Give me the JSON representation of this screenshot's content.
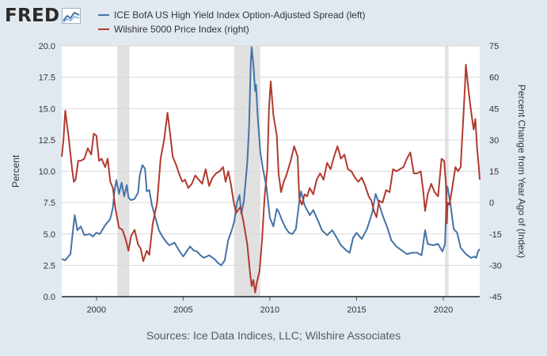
{
  "brand": {
    "wordmark": "FRED"
  },
  "sources": "Sources: Ice Data Indices, LLC; Wilshire Associates",
  "chart_data": {
    "type": "line",
    "x_range": [
      1998.0,
      2022.1
    ],
    "x_ticks": [
      {
        "value": 2000,
        "label": "2000"
      },
      {
        "value": 2005,
        "label": "2005"
      },
      {
        "value": 2010,
        "label": "2010"
      },
      {
        "value": 2015,
        "label": "2015"
      },
      {
        "value": 2020,
        "label": "2020"
      }
    ],
    "y_left": {
      "label": "Percent",
      "range": [
        0,
        20
      ],
      "ticks": [
        "0.0",
        "2.5",
        "5.0",
        "7.5",
        "10.0",
        "12.5",
        "15.0",
        "17.5",
        "20.0"
      ]
    },
    "y_right": {
      "label": "Percent Change from Year Ago of (Index)",
      "range": [
        -45,
        75
      ],
      "ticks": [
        "-45",
        "-30",
        "-15",
        "0",
        "15",
        "30",
        "45",
        "60",
        "75"
      ]
    },
    "recessions": [
      [
        2001.2,
        2001.9
      ],
      [
        2007.95,
        2009.45
      ],
      [
        2020.1,
        2020.3
      ]
    ],
    "series": [
      {
        "name": "ICE BofA US High Yield Index Option-Adjusted Spread (left)",
        "axis": "left",
        "color": "#4572a7",
        "points": [
          [
            1998.0,
            3.0
          ],
          [
            1998.2,
            2.9
          ],
          [
            1998.5,
            3.4
          ],
          [
            1998.65,
            5.3
          ],
          [
            1998.75,
            6.5
          ],
          [
            1998.9,
            5.3
          ],
          [
            1999.1,
            5.6
          ],
          [
            1999.3,
            4.9
          ],
          [
            1999.6,
            5.0
          ],
          [
            1999.8,
            4.8
          ],
          [
            2000.0,
            5.1
          ],
          [
            2000.2,
            5.0
          ],
          [
            2000.5,
            5.7
          ],
          [
            2000.8,
            6.2
          ],
          [
            2000.95,
            7.1
          ],
          [
            2001.05,
            8.5
          ],
          [
            2001.15,
            9.3
          ],
          [
            2001.3,
            8.2
          ],
          [
            2001.45,
            9.1
          ],
          [
            2001.6,
            8.0
          ],
          [
            2001.75,
            8.9
          ],
          [
            2001.85,
            7.9
          ],
          [
            2002.0,
            7.7
          ],
          [
            2002.2,
            7.8
          ],
          [
            2002.4,
            8.3
          ],
          [
            2002.5,
            9.7
          ],
          [
            2002.65,
            10.5
          ],
          [
            2002.8,
            10.2
          ],
          [
            2002.9,
            8.4
          ],
          [
            2003.05,
            8.5
          ],
          [
            2003.2,
            7.3
          ],
          [
            2003.4,
            6.3
          ],
          [
            2003.6,
            5.3
          ],
          [
            2003.8,
            4.8
          ],
          [
            2004.0,
            4.4
          ],
          [
            2004.2,
            4.1
          ],
          [
            2004.5,
            4.3
          ],
          [
            2004.8,
            3.6
          ],
          [
            2005.0,
            3.2
          ],
          [
            2005.2,
            3.6
          ],
          [
            2005.4,
            4.0
          ],
          [
            2005.6,
            3.7
          ],
          [
            2005.8,
            3.6
          ],
          [
            2006.0,
            3.3
          ],
          [
            2006.2,
            3.1
          ],
          [
            2006.5,
            3.3
          ],
          [
            2006.8,
            3.0
          ],
          [
            2007.0,
            2.7
          ],
          [
            2007.2,
            2.5
          ],
          [
            2007.4,
            2.9
          ],
          [
            2007.6,
            4.5
          ],
          [
            2007.8,
            5.3
          ],
          [
            2007.95,
            6.0
          ],
          [
            2008.1,
            7.5
          ],
          [
            2008.25,
            8.1
          ],
          [
            2008.35,
            6.6
          ],
          [
            2008.5,
            7.6
          ],
          [
            2008.7,
            10.7
          ],
          [
            2008.8,
            13.5
          ],
          [
            2008.9,
            18.7
          ],
          [
            2008.95,
            19.9
          ],
          [
            2009.05,
            18.5
          ],
          [
            2009.15,
            16.4
          ],
          [
            2009.2,
            16.9
          ],
          [
            2009.3,
            14.3
          ],
          [
            2009.45,
            11.5
          ],
          [
            2009.6,
            10.2
          ],
          [
            2009.8,
            8.8
          ],
          [
            2010.0,
            6.3
          ],
          [
            2010.2,
            5.6
          ],
          [
            2010.4,
            7.0
          ],
          [
            2010.5,
            6.8
          ],
          [
            2010.7,
            6.1
          ],
          [
            2010.9,
            5.5
          ],
          [
            2011.1,
            5.1
          ],
          [
            2011.3,
            5.0
          ],
          [
            2011.5,
            5.4
          ],
          [
            2011.7,
            7.6
          ],
          [
            2011.8,
            8.4
          ],
          [
            2012.0,
            7.3
          ],
          [
            2012.3,
            6.5
          ],
          [
            2012.5,
            6.9
          ],
          [
            2012.8,
            6.0
          ],
          [
            2013.0,
            5.3
          ],
          [
            2013.3,
            4.9
          ],
          [
            2013.6,
            5.3
          ],
          [
            2013.9,
            4.6
          ],
          [
            2014.1,
            4.1
          ],
          [
            2014.4,
            3.7
          ],
          [
            2014.6,
            3.5
          ],
          [
            2014.8,
            4.7
          ],
          [
            2015.0,
            5.1
          ],
          [
            2015.3,
            4.6
          ],
          [
            2015.6,
            5.4
          ],
          [
            2015.9,
            6.7
          ],
          [
            2016.1,
            8.2
          ],
          [
            2016.25,
            7.6
          ],
          [
            2016.5,
            6.5
          ],
          [
            2016.8,
            5.4
          ],
          [
            2017.0,
            4.5
          ],
          [
            2017.3,
            4.0
          ],
          [
            2017.6,
            3.7
          ],
          [
            2017.9,
            3.4
          ],
          [
            2018.2,
            3.5
          ],
          [
            2018.5,
            3.5
          ],
          [
            2018.75,
            3.3
          ],
          [
            2018.95,
            5.3
          ],
          [
            2019.1,
            4.2
          ],
          [
            2019.4,
            4.1
          ],
          [
            2019.7,
            4.2
          ],
          [
            2019.95,
            3.6
          ],
          [
            2020.1,
            4.2
          ],
          [
            2020.2,
            8.8
          ],
          [
            2020.25,
            8.7
          ],
          [
            2020.4,
            7.5
          ],
          [
            2020.6,
            5.4
          ],
          [
            2020.8,
            5.1
          ],
          [
            2021.0,
            3.9
          ],
          [
            2021.3,
            3.4
          ],
          [
            2021.6,
            3.1
          ],
          [
            2021.8,
            3.2
          ],
          [
            2021.9,
            3.1
          ],
          [
            2022.0,
            3.6
          ],
          [
            2022.1,
            3.8
          ]
        ]
      },
      {
        "name": "Wilshire 5000 Price Index (right)",
        "axis": "right",
        "color": "#b03a2e",
        "points": [
          [
            1998.0,
            22
          ],
          [
            1998.1,
            30
          ],
          [
            1998.2,
            44
          ],
          [
            1998.4,
            31
          ],
          [
            1998.6,
            16
          ],
          [
            1998.7,
            10
          ],
          [
            1998.8,
            11
          ],
          [
            1998.95,
            20
          ],
          [
            1999.1,
            20
          ],
          [
            1999.3,
            21
          ],
          [
            1999.5,
            26
          ],
          [
            1999.7,
            23
          ],
          [
            1999.85,
            33
          ],
          [
            2000.0,
            32
          ],
          [
            2000.15,
            20
          ],
          [
            2000.3,
            21
          ],
          [
            2000.5,
            17
          ],
          [
            2000.65,
            21
          ],
          [
            2000.8,
            10
          ],
          [
            2000.95,
            7
          ],
          [
            2001.1,
            -3
          ],
          [
            2001.3,
            -12
          ],
          [
            2001.5,
            -13
          ],
          [
            2001.7,
            -18
          ],
          [
            2001.85,
            -23
          ],
          [
            2002.0,
            -16
          ],
          [
            2002.2,
            -13
          ],
          [
            2002.4,
            -20
          ],
          [
            2002.55,
            -22
          ],
          [
            2002.7,
            -28
          ],
          [
            2002.9,
            -23
          ],
          [
            2003.05,
            -25
          ],
          [
            2003.25,
            -10
          ],
          [
            2003.5,
            0
          ],
          [
            2003.7,
            21
          ],
          [
            2003.9,
            30
          ],
          [
            2004.1,
            43
          ],
          [
            2004.25,
            33
          ],
          [
            2004.4,
            22
          ],
          [
            2004.6,
            18
          ],
          [
            2004.8,
            13
          ],
          [
            2004.95,
            10
          ],
          [
            2005.1,
            11
          ],
          [
            2005.3,
            7
          ],
          [
            2005.5,
            9
          ],
          [
            2005.7,
            13
          ],
          [
            2005.9,
            11
          ],
          [
            2006.1,
            9
          ],
          [
            2006.3,
            16
          ],
          [
            2006.5,
            8
          ],
          [
            2006.7,
            12
          ],
          [
            2006.9,
            14
          ],
          [
            2007.1,
            15
          ],
          [
            2007.3,
            17
          ],
          [
            2007.45,
            10
          ],
          [
            2007.6,
            15
          ],
          [
            2007.75,
            9
          ],
          [
            2007.9,
            1
          ],
          [
            2008.05,
            -5
          ],
          [
            2008.3,
            -2
          ],
          [
            2008.5,
            -10
          ],
          [
            2008.7,
            -20
          ],
          [
            2008.85,
            -33
          ],
          [
            2008.95,
            -40
          ],
          [
            2009.05,
            -37
          ],
          [
            2009.15,
            -43
          ],
          [
            2009.25,
            -38
          ],
          [
            2009.4,
            -33
          ],
          [
            2009.55,
            -18
          ],
          [
            2009.7,
            3
          ],
          [
            2009.85,
            16
          ],
          [
            2009.95,
            45
          ],
          [
            2010.05,
            58
          ],
          [
            2010.2,
            42
          ],
          [
            2010.4,
            32
          ],
          [
            2010.5,
            14
          ],
          [
            2010.65,
            5
          ],
          [
            2010.8,
            10
          ],
          [
            2010.95,
            13
          ],
          [
            2011.2,
            20
          ],
          [
            2011.4,
            27
          ],
          [
            2011.6,
            22
          ],
          [
            2011.7,
            2
          ],
          [
            2011.85,
            -1
          ],
          [
            2012.0,
            4
          ],
          [
            2012.15,
            3
          ],
          [
            2012.3,
            7
          ],
          [
            2012.5,
            4
          ],
          [
            2012.7,
            11
          ],
          [
            2012.9,
            14
          ],
          [
            2013.1,
            11
          ],
          [
            2013.3,
            19
          ],
          [
            2013.5,
            16
          ],
          [
            2013.7,
            22
          ],
          [
            2013.9,
            27
          ],
          [
            2014.1,
            21
          ],
          [
            2014.3,
            23
          ],
          [
            2014.5,
            16
          ],
          [
            2014.7,
            15
          ],
          [
            2014.9,
            12
          ],
          [
            2015.1,
            10
          ],
          [
            2015.3,
            12
          ],
          [
            2015.5,
            8
          ],
          [
            2015.7,
            3
          ],
          [
            2015.85,
            1
          ],
          [
            2016.0,
            -4
          ],
          [
            2016.15,
            -7
          ],
          [
            2016.3,
            1
          ],
          [
            2016.5,
            0
          ],
          [
            2016.7,
            6
          ],
          [
            2016.9,
            5
          ],
          [
            2017.1,
            16
          ],
          [
            2017.3,
            15
          ],
          [
            2017.5,
            16
          ],
          [
            2017.7,
            17
          ],
          [
            2017.9,
            21
          ],
          [
            2018.1,
            24
          ],
          [
            2018.3,
            14
          ],
          [
            2018.5,
            14
          ],
          [
            2018.7,
            15
          ],
          [
            2018.85,
            5
          ],
          [
            2018.95,
            -4
          ],
          [
            2019.1,
            4
          ],
          [
            2019.3,
            9
          ],
          [
            2019.5,
            5
          ],
          [
            2019.7,
            3
          ],
          [
            2019.9,
            21
          ],
          [
            2020.05,
            20
          ],
          [
            2020.15,
            9
          ],
          [
            2020.2,
            -10
          ],
          [
            2020.25,
            0
          ],
          [
            2020.35,
            -1
          ],
          [
            2020.5,
            6
          ],
          [
            2020.7,
            17
          ],
          [
            2020.85,
            15
          ],
          [
            2021.0,
            17
          ],
          [
            2021.15,
            40
          ],
          [
            2021.25,
            56
          ],
          [
            2021.3,
            66
          ],
          [
            2021.45,
            54
          ],
          [
            2021.6,
            44
          ],
          [
            2021.75,
            35
          ],
          [
            2021.85,
            40
          ],
          [
            2021.95,
            26
          ],
          [
            2022.05,
            17
          ],
          [
            2022.1,
            11
          ]
        ]
      }
    ]
  }
}
